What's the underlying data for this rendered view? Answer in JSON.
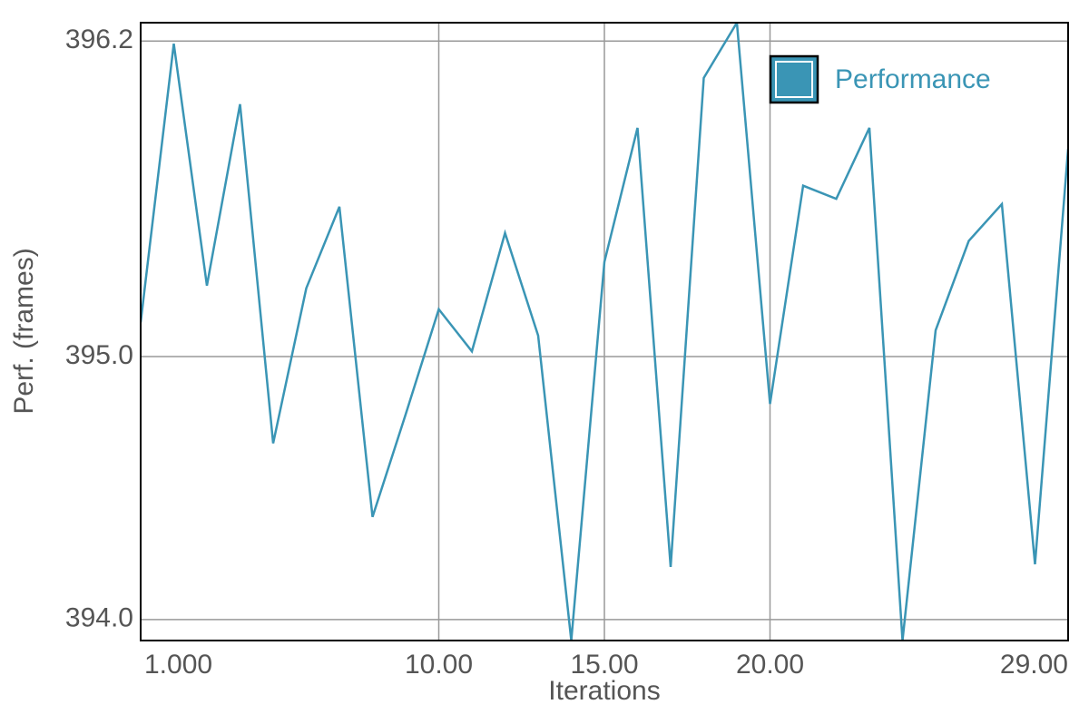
{
  "chart_data": {
    "type": "line",
    "x_label": "Iterations",
    "y_label": "Perf. (frames)",
    "x": [
      1,
      2,
      3,
      4,
      5,
      6,
      7,
      8,
      9,
      10,
      11,
      12,
      13,
      14,
      15,
      16,
      17,
      18,
      19,
      20,
      21,
      22,
      23,
      24,
      25,
      26,
      27,
      28,
      29
    ],
    "series": [
      {
        "name": "Performance",
        "color": "#3a95b5",
        "values": [
          395.13,
          396.19,
          395.27,
          395.96,
          394.67,
          395.26,
          395.57,
          394.39,
          394.78,
          395.18,
          395.02,
          395.47,
          395.08,
          393.92,
          395.36,
          395.87,
          394.2,
          396.06,
          396.27,
          394.82,
          395.65,
          395.6,
          395.87,
          393.92,
          395.1,
          395.44,
          395.58,
          394.21,
          395.79
        ]
      }
    ],
    "xlim": [
      1,
      29
    ],
    "xticks": [
      {
        "value": 1,
        "label": "1.000"
      },
      {
        "value": 10,
        "label": "10.00"
      },
      {
        "value": 15,
        "label": "15.00"
      },
      {
        "value": 20,
        "label": "20.00"
      },
      {
        "value": 29,
        "label": "29.00"
      }
    ],
    "ylim": [
      393.92,
      396.27
    ],
    "yticks": [
      {
        "value": 394,
        "label": "394.0"
      },
      {
        "value": 395,
        "label": "395.0"
      },
      396.2
    ],
    "grid": true,
    "legend": "upper right"
  }
}
